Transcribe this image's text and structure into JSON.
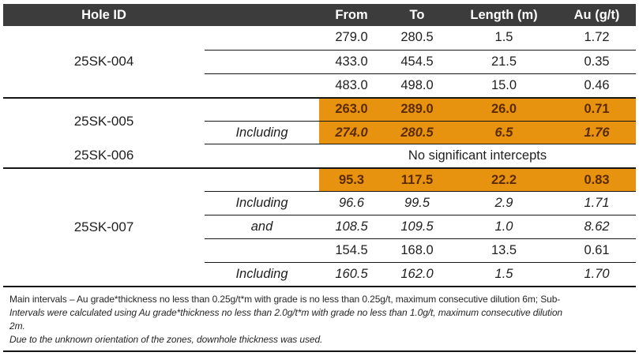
{
  "table": {
    "columns": {
      "hole_id": "Hole ID",
      "from": "From",
      "to": "To",
      "length": "Length (m)",
      "au": "Au (g/t)"
    },
    "holes": [
      {
        "id": "25SK-004",
        "intervals": [
          {
            "qualifier": "",
            "from": "279.0",
            "to": "280.5",
            "length": "1.5",
            "au": "1.72"
          },
          {
            "qualifier": "",
            "from": "433.0",
            "to": "454.5",
            "length": "21.5",
            "au": "0.35"
          },
          {
            "qualifier": "",
            "from": "483.0",
            "to": "498.0",
            "length": "15.0",
            "au": "0.46"
          }
        ]
      },
      {
        "id": "25SK-005",
        "intervals": [
          {
            "qualifier": "",
            "from": "263.0",
            "to": "289.0",
            "length": "26.0",
            "au": "0.71",
            "highlight": true
          },
          {
            "qualifier": "Including",
            "from": "274.0",
            "to": "280.5",
            "length": "6.5",
            "au": "1.76",
            "highlight": true
          }
        ]
      },
      {
        "id": "25SK-006",
        "note": "No significant intercepts"
      },
      {
        "id": "25SK-007",
        "intervals": [
          {
            "qualifier": "",
            "from": "95.3",
            "to": "117.5",
            "length": "22.2",
            "au": "0.83",
            "highlight": true
          },
          {
            "qualifier": "Including",
            "from": "96.6",
            "to": "99.5",
            "length": "2.9",
            "au": "1.71"
          },
          {
            "qualifier": "and",
            "from": "108.5",
            "to": "109.5",
            "length": "1.0",
            "au": "8.62"
          },
          {
            "qualifier": "",
            "from": "154.5",
            "to": "168.0",
            "length": "13.5",
            "au": "0.61"
          },
          {
            "qualifier": "Including",
            "from": "160.5",
            "to": "162.0",
            "length": "1.5",
            "au": "1.70"
          }
        ]
      }
    ],
    "footnotes": {
      "line1_regular": "Main intervals – Au grade*thickness no less than 0.25g/t*m with grade is no less than 0.25g/t, maximum consecutive dilution 6m; Sub-",
      "line2_italic": "Intervals were calculated using Au grade*thickness no less than 2.0g/t*m with grade no less than 1.0g/t, maximum consecutive dilution",
      "line3_italic": "2m.",
      "line4_italic": "Due to the unknown orientation of the zones, downhole thickness was used."
    },
    "colors": {
      "header_bg": "#3C3C3C",
      "header_text": "#FFFFFF",
      "highlight_bg": "#E8930F",
      "highlight_text": "#5B2B00",
      "body_text": "#1F1F1F",
      "line": "#161616"
    }
  }
}
